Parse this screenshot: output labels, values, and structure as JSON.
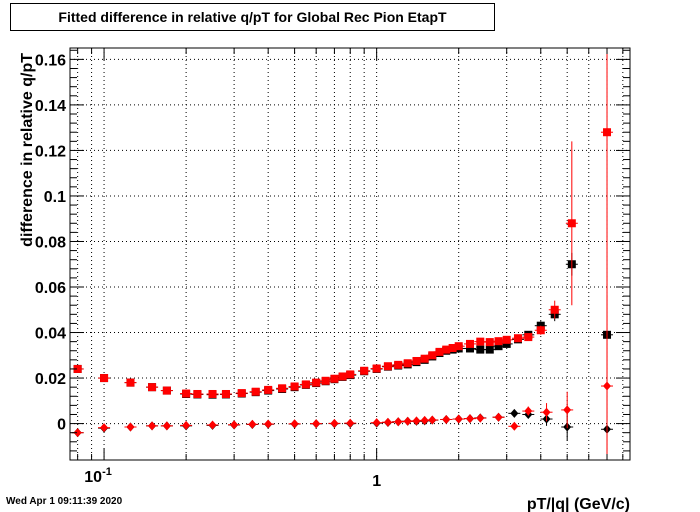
{
  "title": "Fitted difference in relative q/pT for Global Rec Pion EtapT",
  "timestamp": "Wed Apr  1 09:11:39 2020",
  "chart_data": {
    "type": "scatter",
    "title": "Fitted difference in relative q/pT for Global Rec Pion EtapT",
    "xlabel": "pT/|q| (GeV/c)",
    "ylabel": "difference in relative q/pT",
    "x_scale": "log",
    "xlim": [
      0.075,
      8.5
    ],
    "ylim": [
      -0.016,
      0.165
    ],
    "grid": true,
    "x_ticks": [
      {
        "value": 0.1,
        "label": "10^-1"
      },
      {
        "value": 1,
        "label": "1"
      }
    ],
    "y_ticks": [
      0,
      0.02,
      0.04,
      0.06,
      0.08,
      0.1,
      0.12,
      0.14,
      0.16
    ],
    "y_tick_labels": [
      "0",
      "0.02",
      "0.04",
      "0.06",
      "0.08",
      "0.1",
      "0.12",
      "0.14",
      "0.16"
    ],
    "series": [
      {
        "marker": "square",
        "color": "#000000",
        "points": [
          [
            0.08,
            0.024
          ],
          [
            0.1,
            0.02
          ],
          [
            0.125,
            0.018
          ],
          [
            0.15,
            0.016
          ],
          [
            0.17,
            0.0145
          ],
          [
            0.2,
            0.013
          ],
          [
            0.22,
            0.0128
          ],
          [
            0.25,
            0.0127
          ],
          [
            0.28,
            0.0128
          ],
          [
            0.32,
            0.0132
          ],
          [
            0.36,
            0.0138
          ],
          [
            0.4,
            0.0145
          ],
          [
            0.45,
            0.0152
          ],
          [
            0.5,
            0.016
          ],
          [
            0.55,
            0.017
          ],
          [
            0.6,
            0.0178
          ],
          [
            0.65,
            0.0186
          ],
          [
            0.7,
            0.0195
          ],
          [
            0.75,
            0.0205
          ],
          [
            0.8,
            0.0213
          ],
          [
            0.9,
            0.023
          ],
          [
            1.0,
            0.024
          ],
          [
            1.1,
            0.025
          ],
          [
            1.2,
            0.0255
          ],
          [
            1.3,
            0.026
          ],
          [
            1.4,
            0.027
          ],
          [
            1.5,
            0.028
          ],
          [
            1.6,
            0.0295
          ],
          [
            1.7,
            0.031
          ],
          [
            1.8,
            0.032
          ],
          [
            1.9,
            0.0325
          ],
          [
            2.0,
            0.033
          ],
          [
            2.2,
            0.033
          ],
          [
            2.4,
            0.0325
          ],
          [
            2.6,
            0.0325
          ],
          [
            2.8,
            0.034
          ],
          [
            3.0,
            0.035
          ],
          [
            3.3,
            0.037
          ],
          [
            3.6,
            0.039
          ],
          [
            4.0,
            0.043
          ],
          [
            4.5,
            0.048
          ],
          [
            5.2,
            0.07
          ],
          [
            7.0,
            0.039
          ]
        ],
        "y_err": [
          0,
          0,
          0,
          0,
          0,
          0,
          0,
          0,
          0,
          0,
          0,
          0,
          0,
          0,
          0,
          0,
          0,
          0,
          0,
          0,
          0,
          0,
          0,
          0,
          0,
          0,
          0,
          0,
          0,
          0,
          0,
          0,
          0,
          0,
          0,
          0,
          0,
          0,
          0,
          0.002,
          0.003,
          0.005,
          0.015
        ]
      },
      {
        "marker": "square",
        "color": "#ff0000",
        "points": [
          [
            0.08,
            0.024
          ],
          [
            0.1,
            0.02
          ],
          [
            0.125,
            0.018
          ],
          [
            0.15,
            0.016
          ],
          [
            0.17,
            0.0145
          ],
          [
            0.2,
            0.0132
          ],
          [
            0.22,
            0.013
          ],
          [
            0.25,
            0.013
          ],
          [
            0.28,
            0.013
          ],
          [
            0.32,
            0.0134
          ],
          [
            0.36,
            0.014
          ],
          [
            0.4,
            0.0148
          ],
          [
            0.45,
            0.0155
          ],
          [
            0.5,
            0.0163
          ],
          [
            0.55,
            0.0172
          ],
          [
            0.6,
            0.018
          ],
          [
            0.65,
            0.0188
          ],
          [
            0.7,
            0.0197
          ],
          [
            0.75,
            0.0207
          ],
          [
            0.8,
            0.0216
          ],
          [
            0.9,
            0.0232
          ],
          [
            1.0,
            0.0242
          ],
          [
            1.1,
            0.0252
          ],
          [
            1.2,
            0.0258
          ],
          [
            1.3,
            0.0265
          ],
          [
            1.4,
            0.0275
          ],
          [
            1.5,
            0.0285
          ],
          [
            1.6,
            0.03
          ],
          [
            1.7,
            0.0315
          ],
          [
            1.8,
            0.0325
          ],
          [
            1.9,
            0.0332
          ],
          [
            2.0,
            0.034
          ],
          [
            2.2,
            0.035
          ],
          [
            2.4,
            0.036
          ],
          [
            2.6,
            0.0358
          ],
          [
            2.8,
            0.0362
          ],
          [
            3.0,
            0.0368
          ],
          [
            3.3,
            0.0375
          ],
          [
            3.6,
            0.038
          ],
          [
            4.0,
            0.041
          ],
          [
            4.5,
            0.05
          ],
          [
            5.2,
            0.088
          ],
          [
            7.0,
            0.128
          ]
        ],
        "y_err": [
          0,
          0,
          0,
          0,
          0,
          0,
          0,
          0,
          0,
          0,
          0,
          0,
          0,
          0,
          0,
          0,
          0,
          0,
          0,
          0,
          0,
          0,
          0,
          0,
          0,
          0,
          0,
          0,
          0,
          0,
          0,
          0,
          0,
          0,
          0,
          0,
          0,
          0,
          0,
          0.002,
          0.004,
          0.036,
          0.14
        ]
      },
      {
        "marker": "diamond",
        "color": "#000000",
        "points": [
          [
            0.08,
            -0.004
          ],
          [
            0.1,
            -0.002
          ],
          [
            0.125,
            -0.0015
          ],
          [
            0.15,
            -0.001
          ],
          [
            0.17,
            -0.001
          ],
          [
            0.2,
            -0.001
          ],
          [
            0.25,
            -0.0008
          ],
          [
            0.3,
            -0.0006
          ],
          [
            0.35,
            -0.0004
          ],
          [
            0.4,
            -0.0003
          ],
          [
            0.5,
            -0.0002
          ],
          [
            0.6,
            -0.0001
          ],
          [
            0.7,
            0.0
          ],
          [
            0.8,
            0.0
          ],
          [
            1.0,
            0.0002
          ],
          [
            1.1,
            0.0005
          ],
          [
            1.2,
            0.0008
          ],
          [
            1.3,
            0.001
          ],
          [
            1.4,
            0.001
          ],
          [
            1.5,
            0.0012
          ],
          [
            1.6,
            0.0015
          ],
          [
            1.8,
            0.0018
          ],
          [
            2.0,
            0.002
          ],
          [
            2.2,
            0.0022
          ],
          [
            2.4,
            0.0025
          ],
          [
            2.8,
            0.0028
          ],
          [
            3.2,
            0.0045
          ],
          [
            3.6,
            0.004
          ],
          [
            4.2,
            0.002
          ],
          [
            5.0,
            -0.0015
          ],
          [
            7.0,
            -0.0025
          ]
        ],
        "y_err": [
          0,
          0,
          0,
          0,
          0,
          0,
          0,
          0,
          0,
          0,
          0,
          0,
          0,
          0,
          0,
          0,
          0,
          0,
          0,
          0,
          0,
          0,
          0,
          0,
          0,
          0,
          0,
          0.001,
          0.003,
          0.006,
          0.015
        ]
      },
      {
        "marker": "diamond",
        "color": "#ff0000",
        "points": [
          [
            0.08,
            -0.004
          ],
          [
            0.1,
            -0.0018
          ],
          [
            0.125,
            -0.0015
          ],
          [
            0.15,
            -0.001
          ],
          [
            0.17,
            -0.001
          ],
          [
            0.2,
            -0.0008
          ],
          [
            0.25,
            -0.0006
          ],
          [
            0.3,
            -0.0005
          ],
          [
            0.35,
            -0.0003
          ],
          [
            0.4,
            -0.0002
          ],
          [
            0.5,
            -0.0001
          ],
          [
            0.6,
            0.0
          ],
          [
            0.7,
            0.0001
          ],
          [
            0.8,
            0.0002
          ],
          [
            1.0,
            0.0004
          ],
          [
            1.1,
            0.0006
          ],
          [
            1.2,
            0.0008
          ],
          [
            1.3,
            0.001
          ],
          [
            1.4,
            0.0012
          ],
          [
            1.5,
            0.0014
          ],
          [
            1.6,
            0.0016
          ],
          [
            1.8,
            0.0018
          ],
          [
            2.0,
            0.002
          ],
          [
            2.2,
            0.0022
          ],
          [
            2.4,
            0.0024
          ],
          [
            2.8,
            0.0028
          ],
          [
            3.2,
            -0.0012
          ],
          [
            3.6,
            0.0055
          ],
          [
            4.2,
            0.005
          ],
          [
            5.0,
            0.006
          ],
          [
            7.0,
            0.0165
          ]
        ],
        "y_err": [
          0,
          0,
          0,
          0,
          0,
          0,
          0,
          0,
          0,
          0,
          0,
          0,
          0,
          0,
          0,
          0,
          0,
          0,
          0,
          0,
          0,
          0,
          0,
          0,
          0,
          0,
          0,
          0.002,
          0.004,
          0.008,
          0.04
        ]
      }
    ]
  }
}
